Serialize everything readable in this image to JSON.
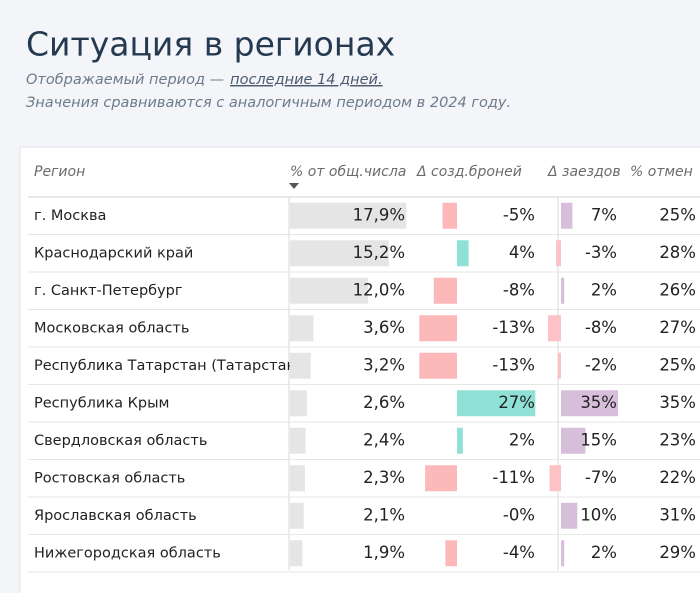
{
  "header": {
    "title": "Ситуация в регионах",
    "period_prefix": "Отображаемый период —",
    "period_link": "последние 14 дней.",
    "note": "Значения сравниваются с аналогичным периодом в 2024 году."
  },
  "table": {
    "columns": [
      "Регион",
      "% от общ.числа",
      "Δ созд.броней",
      "Δ заездов",
      "% отмен"
    ],
    "rows": [
      {
        "region": "г. Москва",
        "share": {
          "value": 17.9,
          "label": "17,9%"
        },
        "bookings": {
          "value": -5,
          "label": "-5%"
        },
        "checkins": {
          "value": 7,
          "label": "7%"
        },
        "cancellations": {
          "value": 25,
          "label": "25%"
        }
      },
      {
        "region": "Краснодарский край",
        "share": {
          "value": 15.2,
          "label": "15,2%"
        },
        "bookings": {
          "value": 4,
          "label": "4%"
        },
        "checkins": {
          "value": -3,
          "label": "-3%"
        },
        "cancellations": {
          "value": 28,
          "label": "28%"
        }
      },
      {
        "region": "г. Санкт-Петербург",
        "share": {
          "value": 12.0,
          "label": "12,0%"
        },
        "bookings": {
          "value": -8,
          "label": "-8%"
        },
        "checkins": {
          "value": 2,
          "label": "2%"
        },
        "cancellations": {
          "value": 26,
          "label": "26%"
        }
      },
      {
        "region": "Московская область",
        "share": {
          "value": 3.6,
          "label": "3,6%"
        },
        "bookings": {
          "value": -13,
          "label": "-13%"
        },
        "checkins": {
          "value": -8,
          "label": "-8%"
        },
        "cancellations": {
          "value": 27,
          "label": "27%"
        }
      },
      {
        "region": "Республика Татарстан (Татарстан)",
        "share": {
          "value": 3.2,
          "label": "3,2%"
        },
        "bookings": {
          "value": -13,
          "label": "-13%"
        },
        "checkins": {
          "value": -2,
          "label": "-2%"
        },
        "cancellations": {
          "value": 25,
          "label": "25%"
        }
      },
      {
        "region": "Республика Крым",
        "share": {
          "value": 2.6,
          "label": "2,6%"
        },
        "bookings": {
          "value": 27,
          "label": "27%"
        },
        "checkins": {
          "value": 35,
          "label": "35%"
        },
        "cancellations": {
          "value": 35,
          "label": "35%"
        }
      },
      {
        "region": "Свердловская область",
        "share": {
          "value": 2.4,
          "label": "2,4%"
        },
        "bookings": {
          "value": 2,
          "label": "2%"
        },
        "checkins": {
          "value": 15,
          "label": "15%"
        },
        "cancellations": {
          "value": 23,
          "label": "23%"
        }
      },
      {
        "region": "Ростовская область",
        "share": {
          "value": 2.3,
          "label": "2,3%"
        },
        "bookings": {
          "value": -11,
          "label": "-11%"
        },
        "checkins": {
          "value": -7,
          "label": "-7%"
        },
        "cancellations": {
          "value": 22,
          "label": "22%"
        }
      },
      {
        "region": "Ярославская область",
        "share": {
          "value": 2.1,
          "label": "2,1%"
        },
        "bookings": {
          "value": 0,
          "label": "-0%"
        },
        "checkins": {
          "value": 10,
          "label": "10%"
        },
        "cancellations": {
          "value": 31,
          "label": "31%"
        }
      },
      {
        "region": "Нижегородская область",
        "share": {
          "value": 1.9,
          "label": "1,9%"
        },
        "bookings": {
          "value": -4,
          "label": "-4%"
        },
        "checkins": {
          "value": 2,
          "label": "2%"
        },
        "cancellations": {
          "value": 29,
          "label": "29%"
        }
      }
    ]
  }
}
